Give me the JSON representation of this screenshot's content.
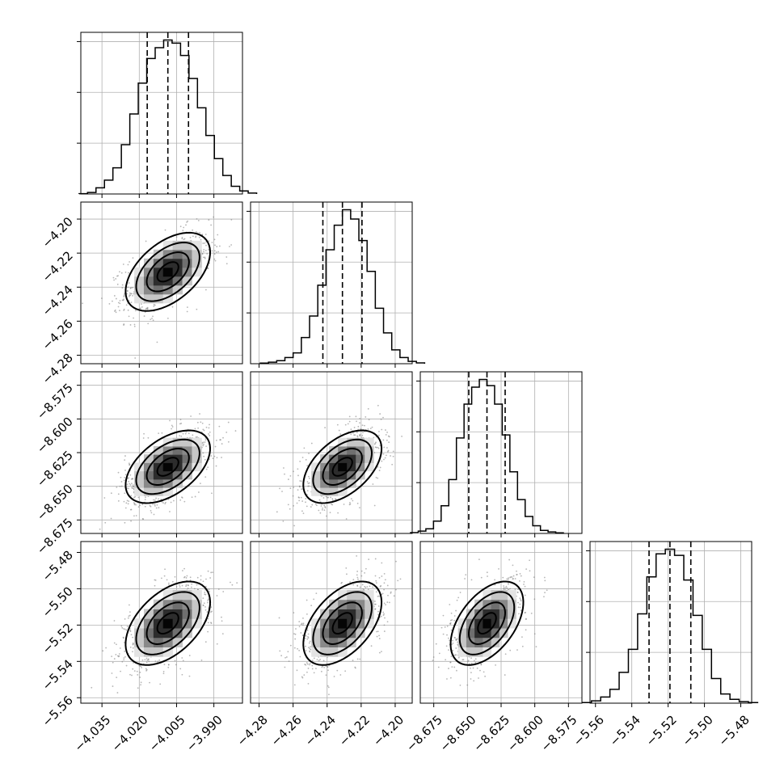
{
  "chart_data": {
    "type": "corner",
    "parameters": [
      {
        "mean": -4.0085,
        "sd": 0.0085,
        "lim": [
          -4.0435,
          -3.9785
        ],
        "ticks": [
          -4.035,
          -4.02,
          -4.005,
          -3.99
        ],
        "tick_labels": [
          "−4.035",
          "−4.020",
          "−4.005",
          "−3.990"
        ],
        "quantiles": [
          -4.0168,
          -4.0085,
          -4.0002
        ],
        "hist_counts": [
          0.2,
          1,
          4,
          9,
          17,
          32,
          52,
          72,
          88,
          95,
          100,
          98,
          90,
          75,
          56,
          38,
          23,
          12,
          5,
          2,
          0.6
        ]
      },
      {
        "mean": -4.231,
        "sd": 0.0115,
        "lim": [
          -4.285,
          -4.19
        ],
        "ticks": [
          -4.28,
          -4.26,
          -4.24,
          -4.22,
          -4.2
        ],
        "tick_labels": [
          "−4.28",
          "−4.26",
          "−4.24",
          "−4.22",
          "−4.20"
        ],
        "quantiles": [
          -4.2425,
          -4.231,
          -4.2195
        ],
        "hist_counts": [
          0.4,
          1,
          2,
          4,
          7,
          17,
          31,
          51,
          74,
          90,
          100,
          94,
          80,
          60,
          36,
          20,
          9,
          4,
          1.5,
          0.5
        ]
      },
      {
        "mean": -8.6355,
        "sd": 0.0135,
        "lim": [
          -8.685,
          -8.565
        ],
        "ticks": [
          -8.675,
          -8.65,
          -8.625,
          -8.6,
          -8.575
        ],
        "tick_labels": [
          "−8.675",
          "−8.650",
          "−8.625",
          "−8.600",
          "−8.575"
        ],
        "quantiles": [
          -8.649,
          -8.6355,
          -8.622
        ],
        "hist_counts": [
          0.5,
          1.5,
          3,
          8,
          18,
          35,
          62,
          84,
          95,
          100,
          96,
          84,
          64,
          40,
          22,
          11,
          5,
          2,
          1,
          0.4
        ]
      },
      {
        "mean": -5.519,
        "sd": 0.0115,
        "lim": [
          -5.563,
          -5.474
        ],
        "ticks": [
          -5.56,
          -5.54,
          -5.52,
          -5.5,
          -5.48
        ],
        "tick_labels": [
          "−5.56",
          "−5.54",
          "−5.52",
          "−5.50",
          "−5.48"
        ],
        "quantiles": [
          -5.5305,
          -5.519,
          -5.5075
        ],
        "hist_counts": [
          0.4,
          1.5,
          4,
          9,
          20,
          35,
          58,
          82,
          97,
          100,
          96,
          80,
          57,
          35,
          16,
          6,
          2.5,
          1,
          0.4
        ]
      }
    ],
    "correlations": [
      [
        1,
        0.5,
        0.5,
        0.5
      ],
      [
        0.5,
        1,
        0.5,
        0.5
      ],
      [
        0.5,
        0.5,
        1,
        0.5
      ],
      [
        0.5,
        0.5,
        0.5,
        1
      ]
    ],
    "contour_sigmas": [
      0.5,
      1,
      1.5,
      2
    ],
    "grid": true,
    "xlabels": [
      "",
      "",
      "",
      ""
    ],
    "ylabels": [
      "",
      "",
      "",
      ""
    ]
  }
}
